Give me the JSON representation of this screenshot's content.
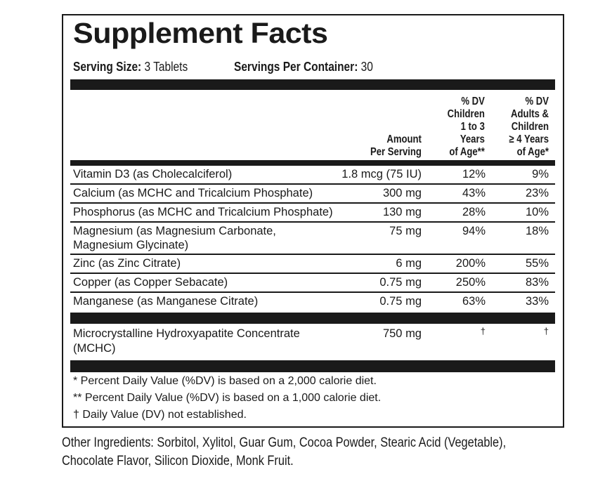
{
  "title": "Supplement Facts",
  "serving": {
    "size_label": "Serving Size:",
    "size_value": "3 Tablets",
    "per_container_label": "Servings Per Container:",
    "per_container_value": "30"
  },
  "headers": {
    "amount": [
      "Amount",
      "Per Serving"
    ],
    "dv_children": [
      "% DV",
      "Children",
      "1 to 3",
      "Years",
      "of Age**"
    ],
    "dv_adults": [
      "% DV",
      "Adults &",
      "Children",
      "≥ 4 Years",
      "of Age*"
    ]
  },
  "rows": [
    {
      "name": "Vitamin D3 (as Cholecalciferol)",
      "amount": "1.8 mcg (75 IU)",
      "dv_children": "12%",
      "dv_adults": "9%"
    },
    {
      "name": "Calcium (as MCHC and Tricalcium Phosphate)",
      "amount": "300 mg",
      "dv_children": "43%",
      "dv_adults": "23%"
    },
    {
      "name": "Phosphorus (as MCHC and Tricalcium Phosphate)",
      "amount": "130 mg",
      "dv_children": "28%",
      "dv_adults": "10%"
    },
    {
      "name": "Magnesium (as Magnesium Carbonate,",
      "name2": "Magnesium Glycinate)",
      "amount": "75 mg",
      "dv_children": "94%",
      "dv_adults": "18%"
    },
    {
      "name": "Zinc (as Zinc Citrate)",
      "amount": "6 mg",
      "dv_children": "200%",
      "dv_adults": "55%"
    },
    {
      "name": "Copper (as Copper Sebacate)",
      "amount": "0.75 mg",
      "dv_children": "250%",
      "dv_adults": "83%"
    },
    {
      "name": "Manganese (as Manganese Citrate)",
      "amount": "0.75 mg",
      "dv_children": "63%",
      "dv_adults": "33%"
    }
  ],
  "other_row": {
    "name": "Microcrystalline Hydroxyapatite Concentrate",
    "name2": "(MCHC)",
    "amount": "750 mg",
    "dv_children": "†",
    "dv_adults": "†"
  },
  "footnotes": [
    "* Percent Daily Value (%DV) is based on a 2,000 calorie diet.",
    "** Percent Daily Value (%DV) is based on a 1,000 calorie diet.",
    "† Daily Value (DV) not established."
  ],
  "other_ingredients": [
    "Other Ingredients: Sorbitol, Xylitol, Guar Gum, Cocoa Powder, Stearic Acid (Vegetable),",
    "Chocolate Flavor, Silicon Dioxide, Monk Fruit."
  ]
}
